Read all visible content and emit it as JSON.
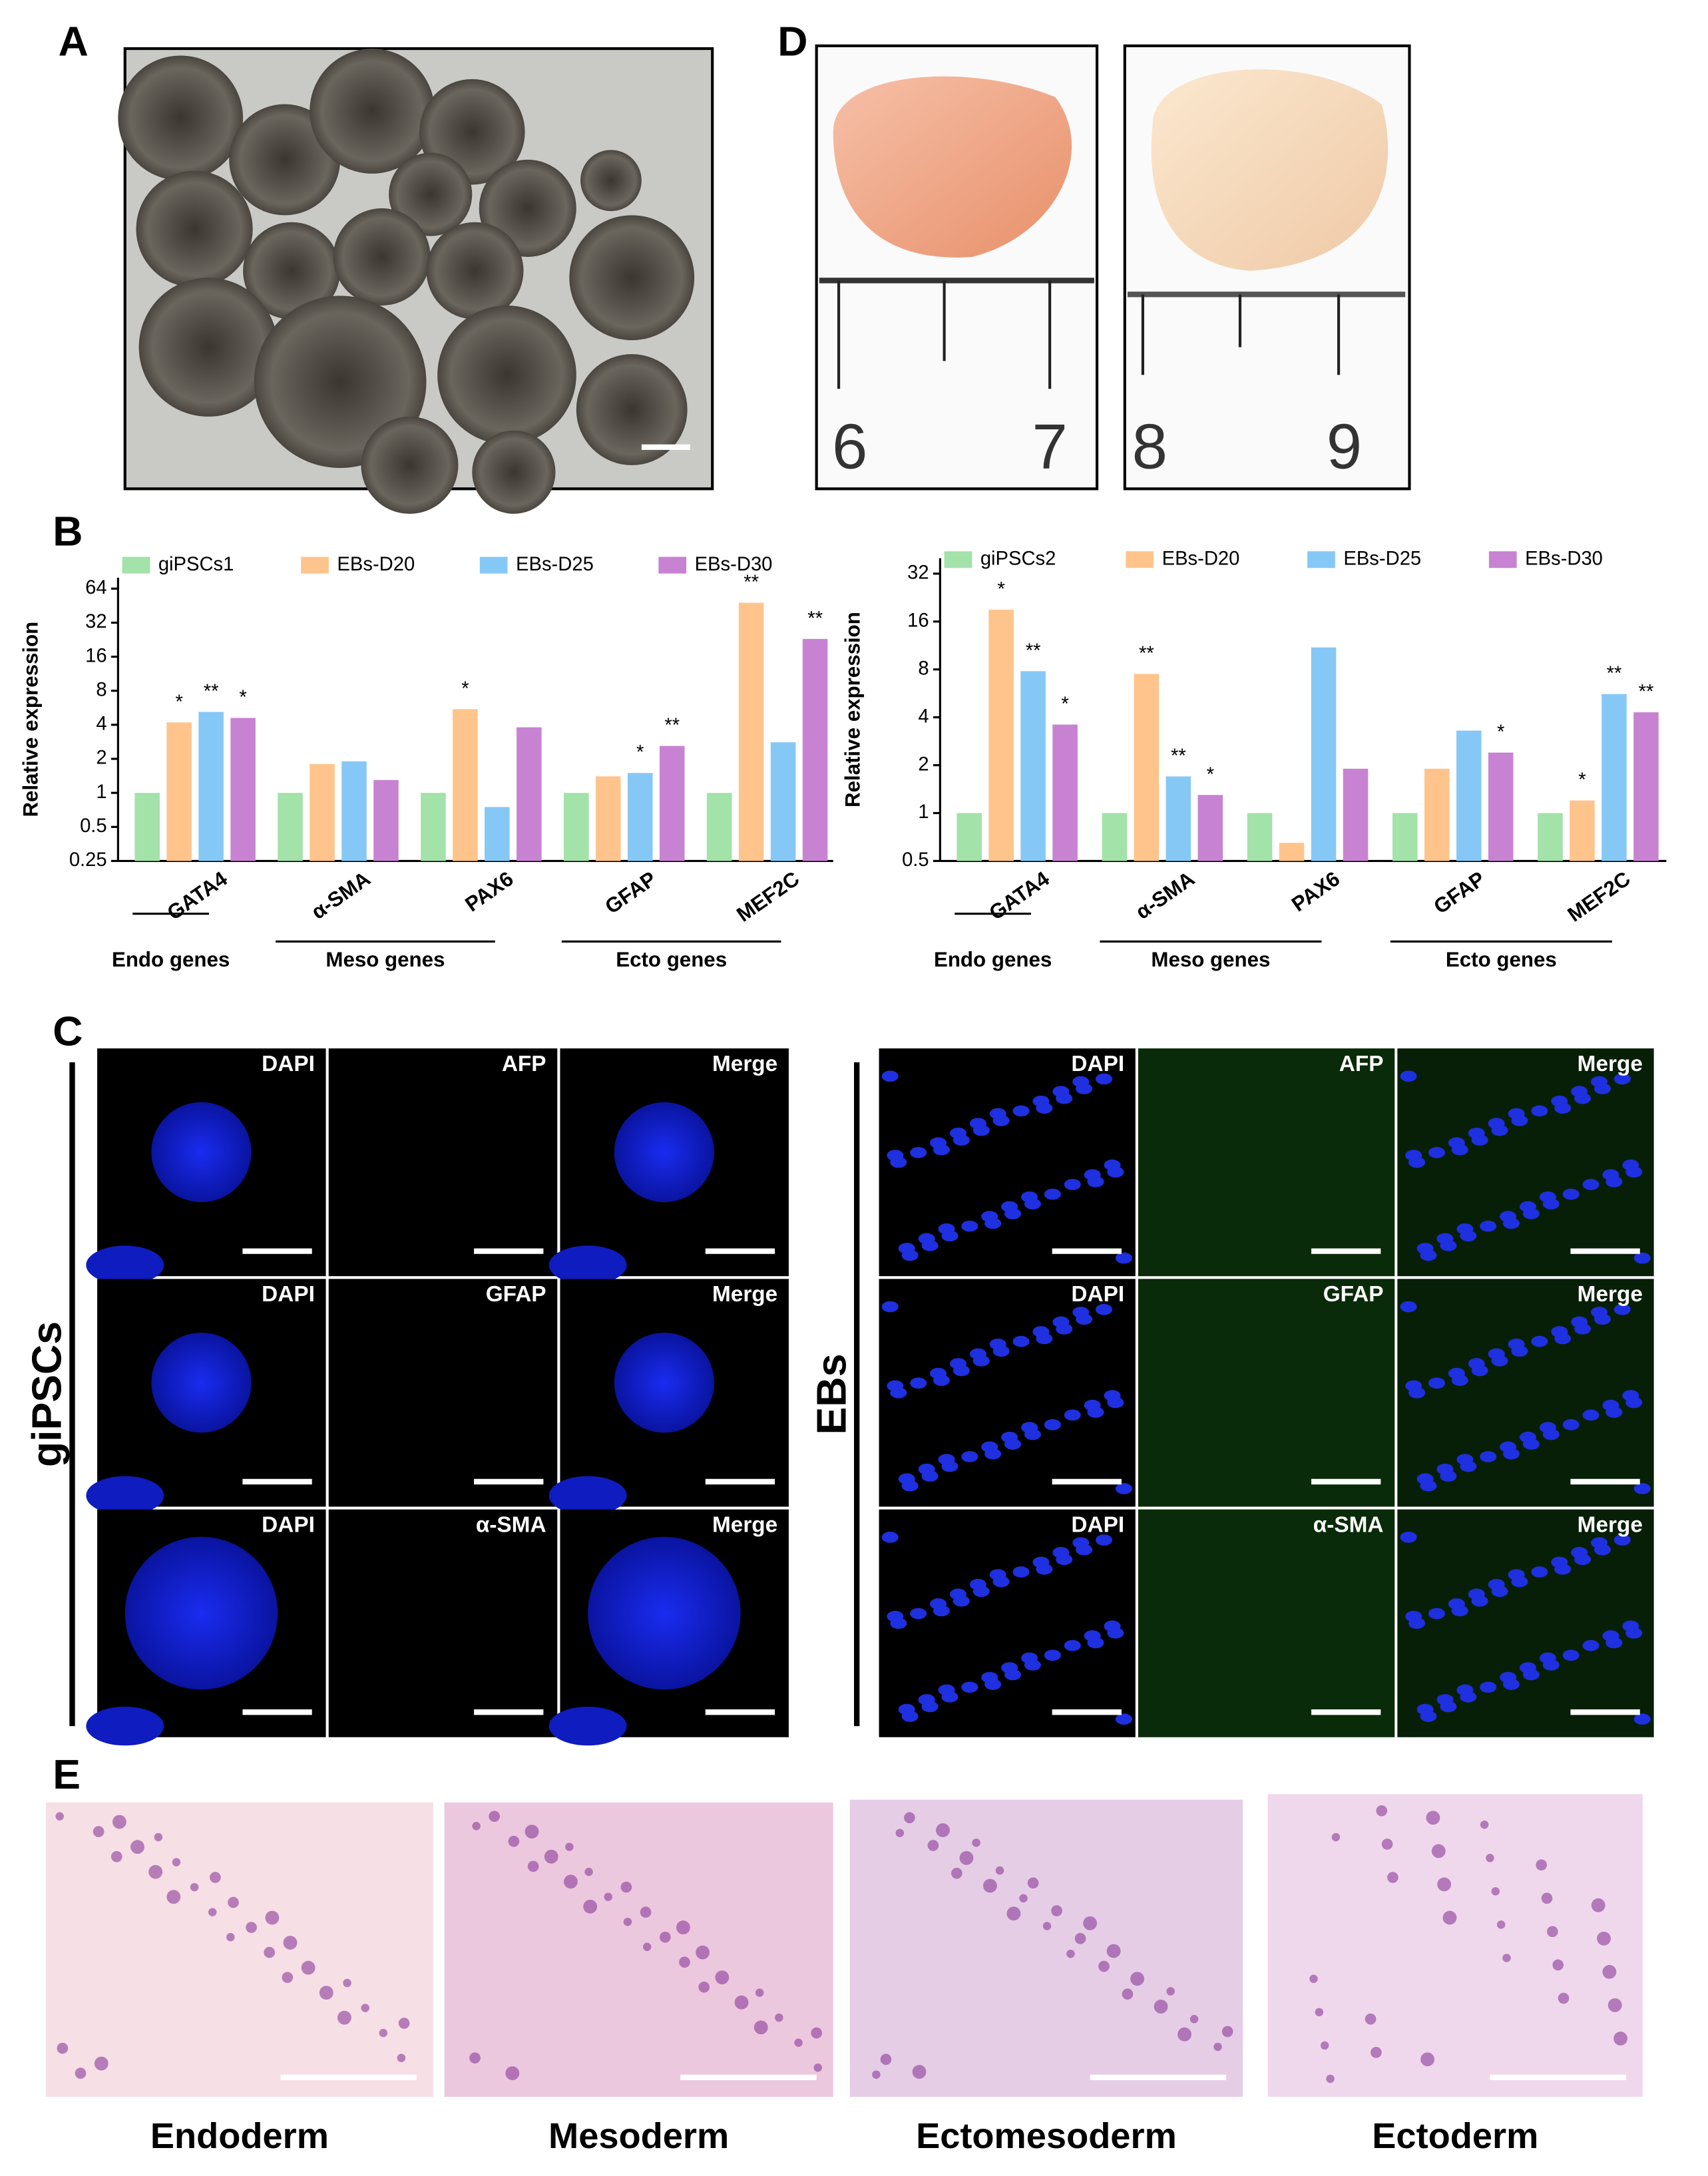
{
  "panels": {
    "a": "A",
    "b": "B",
    "c": "C",
    "d": "D",
    "e": "E"
  },
  "ruler_numbers": [
    "6",
    "7",
    "8",
    "9"
  ],
  "chart_data": [
    {
      "type": "bar",
      "y_label": "Relative expression",
      "log_scale": true,
      "legend": "top",
      "categories": [
        "GATA4",
        "α-SMA",
        "PAX6",
        "GFAP",
        "MEF2C"
      ],
      "series": [
        {
          "name": "giPSCs1",
          "color": "#a3e2a9",
          "values": [
            1,
            1,
            1,
            1,
            1
          ],
          "significance": [
            null,
            null,
            null,
            null,
            null
          ]
        },
        {
          "name": "EBs-D20",
          "color": "#ffc48c",
          "values": [
            4.2,
            1.8,
            5.5,
            1.4,
            48
          ],
          "significance": [
            "*",
            null,
            "*",
            null,
            "**"
          ]
        },
        {
          "name": "EBs-D25",
          "color": "#86c8f5",
          "values": [
            5.2,
            1.9,
            0.75,
            1.5,
            2.8
          ],
          "significance": [
            "**",
            null,
            null,
            "*",
            null
          ]
        },
        {
          "name": "EBs-D30",
          "color": "#c783d1",
          "values": [
            4.6,
            1.3,
            3.8,
            2.6,
            23
          ],
          "significance": [
            "*",
            null,
            null,
            "**",
            "**"
          ]
        }
      ],
      "ylim": [
        0.25,
        80
      ],
      "yticks": [
        0.25,
        0.5,
        1,
        2,
        4,
        8,
        16,
        32,
        64
      ],
      "groups": [
        {
          "label": "Endo genes",
          "members": [
            "GATA4"
          ]
        },
        {
          "label": "Meso genes",
          "members": [
            "α-SMA",
            "PAX6"
          ]
        },
        {
          "label": "Ecto genes",
          "members": [
            "GFAP",
            "MEF2C"
          ]
        }
      ]
    },
    {
      "type": "bar",
      "y_label": "Relative expression",
      "log_scale": true,
      "legend": "top",
      "categories": [
        "GATA4",
        "α-SMA",
        "PAX6",
        "GFAP",
        "MEF2C"
      ],
      "series": [
        {
          "name": "giPSCs2",
          "color": "#a3e2a9",
          "values": [
            1,
            1,
            1,
            1,
            1
          ],
          "significance": [
            null,
            null,
            null,
            null,
            null
          ]
        },
        {
          "name": "EBs-D20",
          "color": "#ffc48c",
          "values": [
            19,
            7.5,
            0.65,
            1.9,
            1.2
          ],
          "significance": [
            "*",
            "**",
            null,
            null,
            "*"
          ]
        },
        {
          "name": "EBs-D25",
          "color": "#86c8f5",
          "values": [
            7.8,
            1.7,
            11,
            3.3,
            5.6
          ],
          "significance": [
            "**",
            "**",
            null,
            null,
            "**"
          ]
        },
        {
          "name": "EBs-D30",
          "color": "#c783d1",
          "values": [
            3.6,
            1.3,
            1.9,
            2.4,
            4.3
          ],
          "significance": [
            "*",
            "*",
            null,
            "*",
            "**"
          ]
        }
      ],
      "ylim": [
        0.5,
        40
      ],
      "yticks": [
        0.5,
        1,
        2,
        4,
        8,
        16,
        32
      ],
      "groups": [
        {
          "label": "Endo genes",
          "members": [
            "GATA4"
          ]
        },
        {
          "label": "Meso genes",
          "members": [
            "α-SMA",
            "PAX6"
          ]
        },
        {
          "label": "Ecto genes",
          "members": [
            "GFAP",
            "MEF2C"
          ]
        }
      ]
    }
  ],
  "immunofluorescence": {
    "left": {
      "label": "giPSCs",
      "rows": [
        [
          "DAPI",
          "AFP",
          "Merge"
        ],
        [
          "DAPI",
          "GFAP",
          "Merge"
        ],
        [
          "DAPI",
          "α-SMA",
          "Merge"
        ]
      ]
    },
    "right": {
      "label": "EBs",
      "rows": [
        [
          "DAPI",
          "AFP",
          "Merge"
        ],
        [
          "DAPI",
          "GFAP",
          "Merge"
        ],
        [
          "DAPI",
          "α-SMA",
          "Merge"
        ]
      ]
    }
  },
  "histology": {
    "labels": [
      "Endoderm",
      "Mesoderm",
      "Ectomesoderm",
      "Ectoderm"
    ]
  }
}
